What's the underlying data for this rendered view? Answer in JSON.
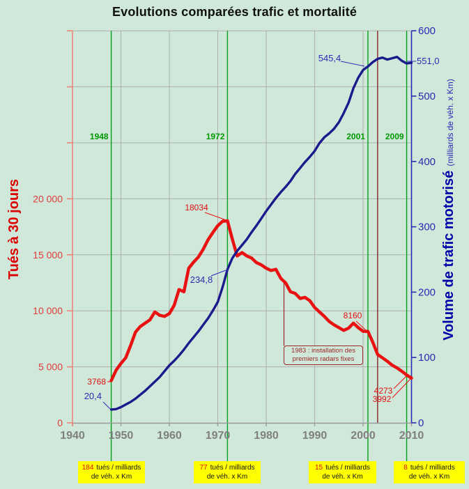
{
  "title": "Evolutions comparées trafic et mortalité",
  "axes": {
    "left_title": "Tués à 30 jours",
    "right_title_main": "Volume de trafic motorisé",
    "right_title_units": "(milliards de véh. x Km)",
    "left_ticks": [
      {
        "v": 0,
        "t": "0"
      },
      {
        "v": 5000,
        "t": "5 000"
      },
      {
        "v": 10000,
        "t": "10 000"
      },
      {
        "v": 15000,
        "t": "15 000"
      },
      {
        "v": 20000,
        "t": "20 000"
      }
    ],
    "right_ticks": [
      0,
      100,
      200,
      300,
      400,
      500,
      600
    ],
    "x_ticks": [
      1940,
      1950,
      1960,
      1970,
      1980,
      1990,
      2000,
      2010
    ]
  },
  "events": [
    {
      "year": 1948,
      "label": "1948",
      "kind": "green"
    },
    {
      "year": 1972,
      "label": "1972",
      "kind": "green"
    },
    {
      "year": 2001,
      "label": "2001",
      "kind": "green"
    },
    {
      "year": 2003,
      "label": "",
      "kind": "darkred"
    },
    {
      "year": 2009,
      "label": "2009",
      "kind": "green"
    }
  ],
  "radar_note": {
    "line1": "1983 : installation des",
    "line2": "premiers radars fixes"
  },
  "rate_boxes": [
    {
      "num": "184",
      "rest": "tués / milliards",
      "line2": "de véh. x Km"
    },
    {
      "num": "77",
      "rest": "tués / milliards",
      "line2": "de véh. x Km"
    },
    {
      "num": "15",
      "rest": "tués / milliards",
      "line2": "de véh. x Km"
    },
    {
      "num": "8",
      "rest": "tués / milliards",
      "line2": "de véh. x Km"
    }
  ],
  "colors": {
    "background": "#cfe8da",
    "grid": "#aeaeae",
    "x_axis": "#999999",
    "x_labels": "#7f7f7f",
    "left_axis": "#ef8576",
    "left_tick_labels": "#e13b3b",
    "left_series": "#e81212",
    "right_axis": "#2a2ab4",
    "right_series": "#1a1a8c",
    "event_green": "#00a019",
    "event_green_label": "#009900",
    "event_darkred": "#8b2424",
    "annotation": "#9b2626",
    "rate_box_bg": "#ffff00"
  },
  "chart_data": {
    "type": "line",
    "title": "Evolutions comparées trafic et mortalité",
    "x_range": [
      1940,
      2010
    ],
    "left_ylim": [
      0,
      35000
    ],
    "right_ylim": [
      0,
      600
    ],
    "grid": true,
    "years": [
      1948,
      1949,
      1950,
      1951,
      1952,
      1953,
      1954,
      1955,
      1956,
      1957,
      1958,
      1959,
      1960,
      1961,
      1962,
      1963,
      1964,
      1965,
      1966,
      1967,
      1968,
      1969,
      1970,
      1971,
      1972,
      1973,
      1974,
      1975,
      1976,
      1977,
      1978,
      1979,
      1980,
      1981,
      1982,
      1983,
      1984,
      1985,
      1986,
      1987,
      1988,
      1989,
      1990,
      1991,
      1992,
      1993,
      1994,
      1995,
      1996,
      1997,
      1998,
      1999,
      2000,
      2001,
      2002,
      2003,
      2004,
      2005,
      2006,
      2007,
      2008,
      2009,
      2010
    ],
    "series": [
      {
        "name": "Tués à 30 jours",
        "axis": "left",
        "values": [
          3768,
          4700,
          5300,
          5800,
          6900,
          8100,
          8600,
          8900,
          9200,
          9900,
          9600,
          9500,
          9750,
          10500,
          11900,
          11700,
          13800,
          14350,
          14800,
          15500,
          16350,
          17000,
          17600,
          18000,
          18034,
          16400,
          14900,
          15200,
          14900,
          14700,
          14300,
          14100,
          13800,
          13600,
          13700,
          12900,
          12500,
          11700,
          11550,
          11100,
          11200,
          10900,
          10300,
          9900,
          9500,
          9050,
          8750,
          8500,
          8250,
          8450,
          8900,
          8500,
          8170,
          8160,
          7200,
          6100,
          5800,
          5500,
          5150,
          4900,
          4600,
          4273,
          3992
        ]
      },
      {
        "name": "Volume de trafic motorisé (milliards de véh. x Km)",
        "axis": "right",
        "values": [
          20.4,
          21,
          24,
          28,
          32,
          37,
          43,
          49,
          56,
          63,
          70,
          79,
          88,
          95,
          103,
          112,
          122,
          131,
          140,
          150,
          160,
          172,
          185,
          208,
          234.8,
          252,
          263,
          272,
          281,
          292,
          302,
          313,
          324,
          334,
          344,
          353,
          361,
          370,
          381,
          390,
          399,
          407,
          416,
          428,
          437,
          443,
          450,
          460,
          474,
          490,
          512,
          528,
          540,
          545.4,
          552,
          557,
          559,
          556,
          558,
          560,
          554,
          550,
          551
        ]
      }
    ],
    "point_labels": {
      "deaths": [
        {
          "text": "3768",
          "year": 1948
        },
        {
          "text": "18034",
          "year": 1972
        },
        {
          "text": "8160",
          "year": 2001
        },
        {
          "text": "4273",
          "year": 2009
        },
        {
          "text": "3992",
          "year": 2010
        }
      ],
      "traffic": [
        {
          "text": "20,4",
          "year": 1948
        },
        {
          "text": "234,8",
          "year": 1972
        },
        {
          "text": "545,4",
          "year": 2001
        },
        {
          "text": "551,0",
          "year": 2010
        }
      ]
    },
    "annotation_year": 1983
  }
}
